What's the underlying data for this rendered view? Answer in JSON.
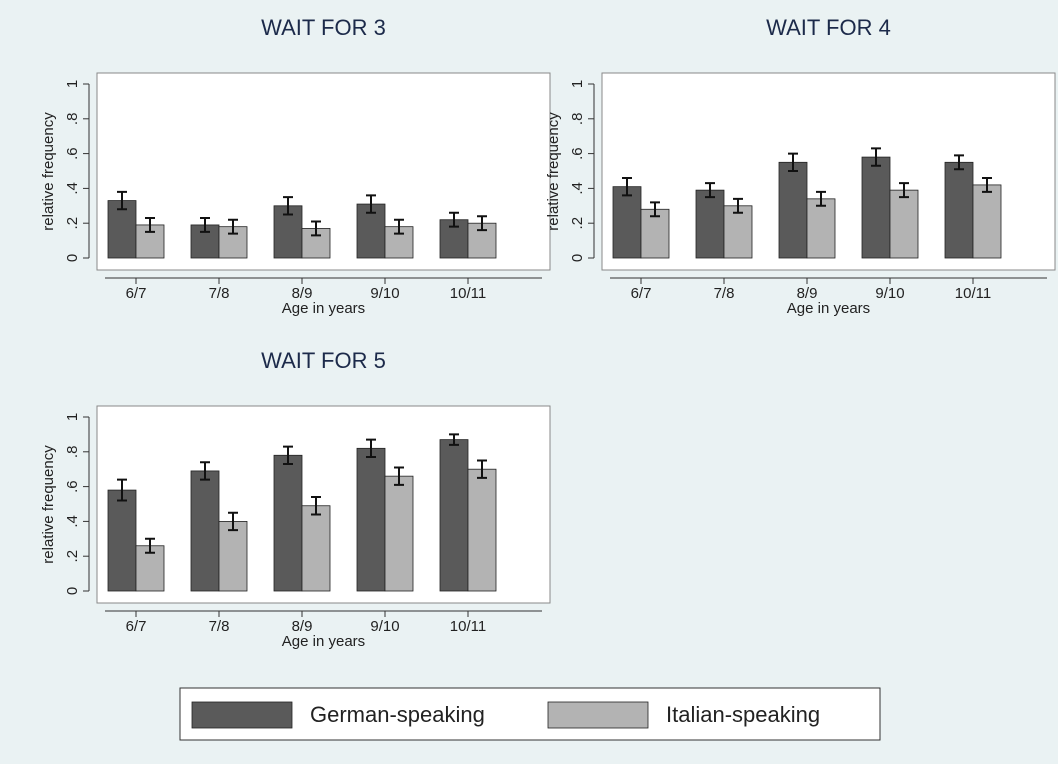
{
  "chart_data": [
    {
      "type": "bar",
      "title": "WAIT FOR 3",
      "xlabel": "Age in years",
      "ylabel": "relative frequency",
      "categories": [
        "6/7",
        "7/8",
        "8/9",
        "9/10",
        "10/11"
      ],
      "series": [
        {
          "name": "German-speaking",
          "color": "#5a5a5a",
          "values": [
            0.33,
            0.19,
            0.3,
            0.31,
            0.22
          ],
          "errors": [
            0.05,
            0.04,
            0.05,
            0.05,
            0.04
          ]
        },
        {
          "name": "Italian-speaking",
          "color": "#b3b3b3",
          "values": [
            0.19,
            0.18,
            0.17,
            0.18,
            0.2
          ],
          "errors": [
            0.04,
            0.04,
            0.04,
            0.04,
            0.04
          ]
        }
      ],
      "ylim": [
        0,
        1
      ],
      "yticks": [
        0,
        {
          "value": 0.2,
          "label": ".2"
        },
        {
          "value": 0.4,
          "label": ".4"
        },
        {
          "value": 0.6,
          "label": ".6"
        },
        {
          "value": 0.8,
          "label": ".8"
        },
        1
      ]
    },
    {
      "type": "bar",
      "title": "WAIT FOR 4",
      "xlabel": "Age in years",
      "ylabel": "relative frequency",
      "categories": [
        "6/7",
        "7/8",
        "8/9",
        "9/10",
        "10/11"
      ],
      "series": [
        {
          "name": "German-speaking",
          "color": "#5a5a5a",
          "values": [
            0.41,
            0.39,
            0.55,
            0.58,
            0.55
          ],
          "errors": [
            0.05,
            0.04,
            0.05,
            0.05,
            0.04
          ]
        },
        {
          "name": "Italian-speaking",
          "color": "#b3b3b3",
          "values": [
            0.28,
            0.3,
            0.34,
            0.39,
            0.42
          ],
          "errors": [
            0.04,
            0.04,
            0.04,
            0.04,
            0.04
          ]
        }
      ],
      "ylim": [
        0,
        1
      ],
      "yticks": [
        0,
        {
          "value": 0.2,
          "label": ".2"
        },
        {
          "value": 0.4,
          "label": ".4"
        },
        {
          "value": 0.6,
          "label": ".6"
        },
        {
          "value": 0.8,
          "label": ".8"
        },
        1
      ]
    },
    {
      "type": "bar",
      "title": "WAIT FOR 5",
      "xlabel": "Age in years",
      "ylabel": "relative frequency",
      "categories": [
        "6/7",
        "7/8",
        "8/9",
        "9/10",
        "10/11"
      ],
      "series": [
        {
          "name": "German-speaking",
          "color": "#5a5a5a",
          "values": [
            0.58,
            0.69,
            0.78,
            0.82,
            0.87
          ],
          "errors": [
            0.06,
            0.05,
            0.05,
            0.05,
            0.03
          ]
        },
        {
          "name": "Italian-speaking",
          "color": "#b3b3b3",
          "values": [
            0.26,
            0.4,
            0.49,
            0.66,
            0.7
          ],
          "errors": [
            0.04,
            0.05,
            0.05,
            0.05,
            0.05
          ]
        }
      ],
      "ylim": [
        0,
        1
      ],
      "yticks": [
        0,
        {
          "value": 0.2,
          "label": ".2"
        },
        {
          "value": 0.4,
          "label": ".4"
        },
        {
          "value": 0.6,
          "label": ".6"
        },
        {
          "value": 0.8,
          "label": ".8"
        },
        1
      ]
    }
  ]
}
